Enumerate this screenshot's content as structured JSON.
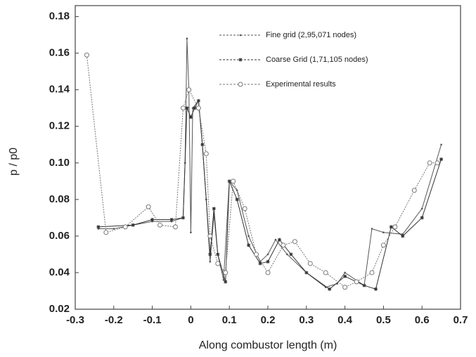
{
  "chart_data": {
    "type": "line",
    "xlabel": "Along combustor length (m)",
    "ylabel": "p / p0",
    "xlim": [
      -0.3,
      0.7
    ],
    "xticks": [
      -0.3,
      -0.2,
      -0.1,
      0,
      0.1,
      0.2,
      0.3,
      0.4,
      0.5,
      0.6,
      0.7
    ],
    "ylim": [
      0.02,
      0.186
    ],
    "yticks": [
      0.02,
      0.04,
      0.06,
      0.08,
      {
        "value": 0.1,
        "label": "0.10"
      },
      0.12,
      0.14,
      0.16,
      0.18
    ],
    "series": [
      {
        "name": "Fine grid (2,95,071 nodes)",
        "color": "#555555",
        "marker": "dot",
        "x": [
          -0.24,
          -0.2,
          -0.15,
          -0.1,
          -0.05,
          -0.02,
          -0.015,
          -0.01,
          -0.005,
          0,
          0.005,
          0.02,
          0.03,
          0.04,
          0.05,
          0.06,
          0.07,
          0.085,
          0.1,
          0.12,
          0.15,
          0.18,
          0.2,
          0.22,
          0.25,
          0.3,
          0.35,
          0.38,
          0.4,
          0.45,
          0.47,
          0.5,
          0.55,
          0.6,
          0.65
        ],
        "values": [
          0.064,
          0.064,
          0.066,
          0.068,
          0.068,
          0.07,
          0.1,
          0.168,
          0.14,
          0.062,
          0.13,
          0.134,
          0.11,
          0.08,
          0.046,
          0.072,
          0.05,
          0.036,
          0.09,
          0.085,
          0.06,
          0.046,
          0.05,
          0.058,
          0.05,
          0.04,
          0.032,
          0.034,
          0.04,
          0.033,
          0.064,
          0.062,
          0.061,
          0.075,
          0.11
        ]
      },
      {
        "name": "Coarse Grid (1,71,105 nodes)",
        "color": "#333333",
        "marker": "star",
        "x": [
          -0.24,
          -0.15,
          -0.1,
          -0.05,
          -0.02,
          -0.01,
          0,
          0.01,
          0.02,
          0.03,
          0.05,
          0.06,
          0.07,
          0.09,
          0.1,
          0.12,
          0.15,
          0.18,
          0.2,
          0.23,
          0.26,
          0.3,
          0.36,
          0.4,
          0.45,
          0.48,
          0.52,
          0.55,
          0.6,
          0.65
        ],
        "values": [
          0.065,
          0.066,
          0.069,
          0.069,
          0.07,
          0.13,
          0.125,
          0.13,
          0.134,
          0.11,
          0.05,
          0.075,
          0.05,
          0.035,
          0.09,
          0.08,
          0.055,
          0.045,
          0.046,
          0.058,
          0.05,
          0.04,
          0.031,
          0.038,
          0.033,
          0.031,
          0.065,
          0.06,
          0.07,
          0.102
        ]
      },
      {
        "name": "Experimental results",
        "color": "#777777",
        "marker": "circle",
        "x": [
          -0.27,
          -0.22,
          -0.17,
          -0.11,
          -0.08,
          -0.04,
          -0.02,
          -0.005,
          0.02,
          0.04,
          0.05,
          0.07,
          0.09,
          0.11,
          0.14,
          0.17,
          0.2,
          0.24,
          0.27,
          0.31,
          0.35,
          0.4,
          0.43,
          0.47,
          0.5,
          0.53,
          0.58,
          0.62,
          0.64
        ],
        "values": [
          0.159,
          0.062,
          0.065,
          0.076,
          0.066,
          0.065,
          0.13,
          0.14,
          0.13,
          0.105,
          0.06,
          0.045,
          0.04,
          0.09,
          0.075,
          0.05,
          0.04,
          0.055,
          0.057,
          0.045,
          0.04,
          0.032,
          0.035,
          0.04,
          0.055,
          0.065,
          0.085,
          0.1,
          0.1
        ]
      }
    ]
  }
}
